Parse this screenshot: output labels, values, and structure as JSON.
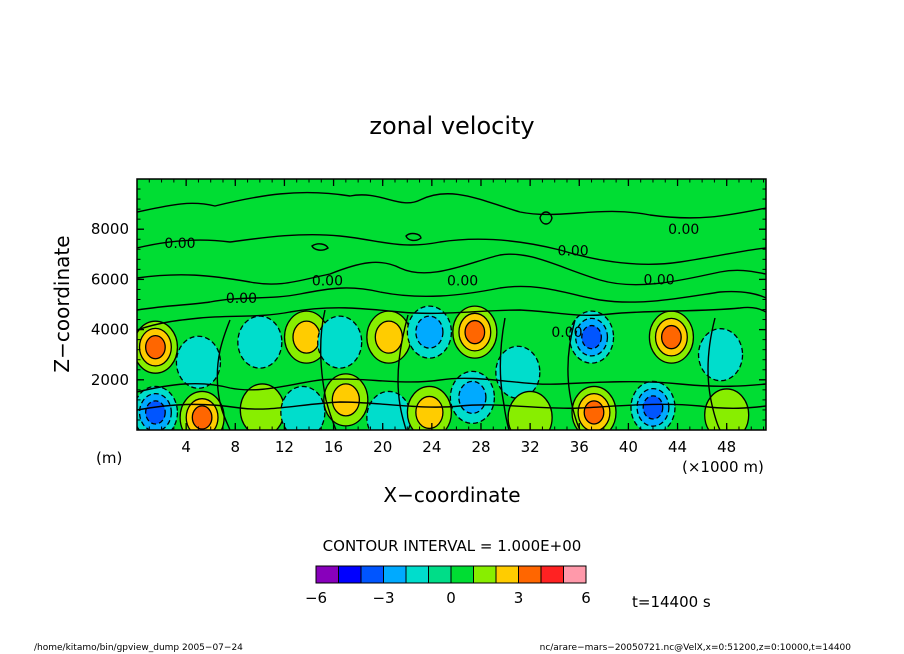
{
  "chart_data": {
    "type": "contour",
    "title": "zonal velocity",
    "xlabel": "X−coordinate",
    "ylabel": "Z−coordinate",
    "xunit": "(×1000 m)",
    "yunit": "(m)",
    "xlim": [
      0,
      51.2
    ],
    "ylim": [
      0,
      10000
    ],
    "xticks": [
      "4",
      "8",
      "12",
      "16",
      "20",
      "24",
      "28",
      "32",
      "36",
      "40",
      "44",
      "48"
    ],
    "xtick_values": [
      4,
      8,
      12,
      16,
      20,
      24,
      28,
      32,
      36,
      40,
      44,
      48
    ],
    "yticks": [
      "2000",
      "4000",
      "6000",
      "8000"
    ],
    "ytick_values": [
      2000,
      4000,
      6000,
      8000
    ],
    "contour_labels": [
      {
        "text": "0.00",
        "x": 3.5,
        "z": 7450
      },
      {
        "text": "0.00",
        "x": 8.5,
        "z": 5250
      },
      {
        "text": "0.00",
        "x": 15.5,
        "z": 5950
      },
      {
        "text": "0.00",
        "x": 26.5,
        "z": 5950
      },
      {
        "text": "0.00",
        "x": 35.5,
        "z": 7150
      },
      {
        "text": "0.00",
        "x": 42.5,
        "z": 6000
      },
      {
        "text": "0.00",
        "x": 44.5,
        "z": 8000
      },
      {
        "text": "0.00",
        "x": 35.0,
        "z": 3900
      }
    ],
    "cells": [
      {
        "x": 1.5,
        "z": 700,
        "value": -3.5
      },
      {
        "x": 1.5,
        "z": 3300,
        "value": 3.2
      },
      {
        "x": 5.3,
        "z": 500,
        "value": 3.6
      },
      {
        "x": 5.0,
        "z": 2700,
        "value": -1.6
      },
      {
        "x": 10.0,
        "z": 3500,
        "value": -1.4
      },
      {
        "x": 10.2,
        "z": 800,
        "value": 1.8
      },
      {
        "x": 13.5,
        "z": 700,
        "value": -1.6
      },
      {
        "x": 13.8,
        "z": 3700,
        "value": 2.6
      },
      {
        "x": 17.0,
        "z": 1200,
        "value": 2.0
      },
      {
        "x": 16.5,
        "z": 3500,
        "value": -1.3
      },
      {
        "x": 20.5,
        "z": 3700,
        "value": 2.2
      },
      {
        "x": 20.5,
        "z": 500,
        "value": -1.6
      },
      {
        "x": 23.8,
        "z": 3900,
        "value": -2.6
      },
      {
        "x": 23.8,
        "z": 700,
        "value": 2.6
      },
      {
        "x": 27.5,
        "z": 3900,
        "value": 3.5
      },
      {
        "x": 27.3,
        "z": 1300,
        "value": -2.5
      },
      {
        "x": 31.0,
        "z": 2300,
        "value": -1.4
      },
      {
        "x": 32.0,
        "z": 500,
        "value": 1.4
      },
      {
        "x": 37.0,
        "z": 3700,
        "value": -3.6
      },
      {
        "x": 37.2,
        "z": 700,
        "value": 3.5
      },
      {
        "x": 43.5,
        "z": 3700,
        "value": 3.8
      },
      {
        "x": 42.0,
        "z": 900,
        "value": -3.6
      },
      {
        "x": 47.5,
        "z": 3000,
        "value": -1.7
      },
      {
        "x": 48.0,
        "z": 600,
        "value": 1.3
      }
    ]
  },
  "colorbar": {
    "heading": "CONTOUR INTERVAL = 1.000E+00",
    "colors": [
      "#8800bb",
      "#0000ff",
      "#0055ff",
      "#00aaff",
      "#00ddcc",
      "#00dd88",
      "#00dd33",
      "#88ee00",
      "#ffcc00",
      "#ff6600",
      "#ff2222",
      "#ff99aa"
    ],
    "labels": [
      "−6",
      "−3",
      "0",
      "3",
      "6"
    ],
    "label_values": [
      -6,
      -3,
      0,
      3,
      6
    ],
    "range": [
      -6,
      6
    ]
  },
  "time_label": "t=14400 s",
  "footer": {
    "left": "/home/kitamo/bin/gpview_dump  2005−07−24",
    "right": "nc/arare−mars−20050721.nc@VelX,x=0:51200,z=0:10000,t=14400"
  }
}
